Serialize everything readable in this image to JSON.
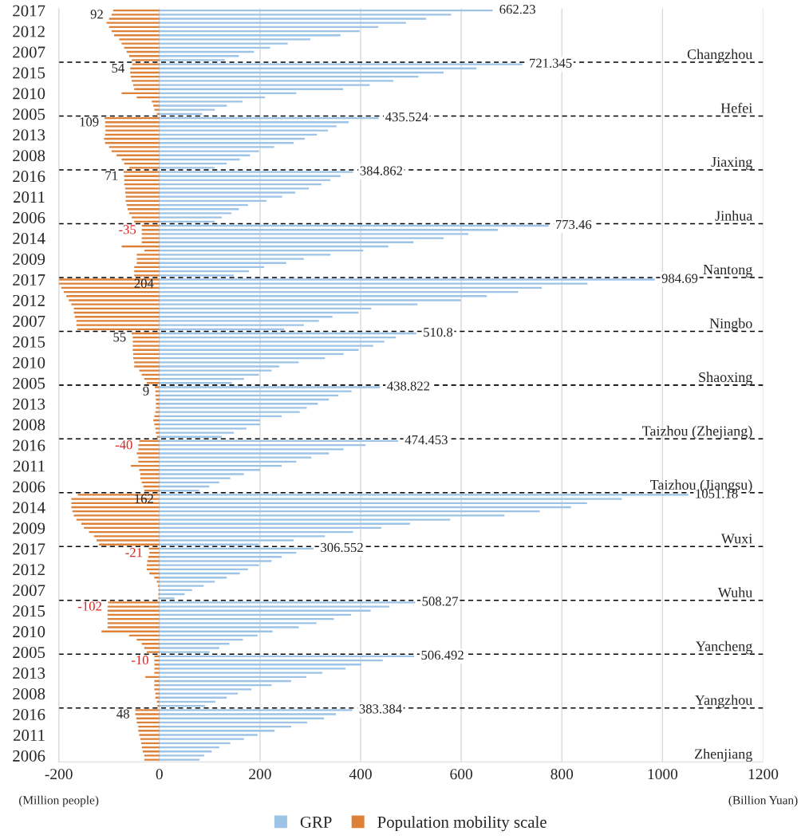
{
  "chart_data": {
    "type": "bar",
    "orientation": "horizontal",
    "categories": [
      "2017",
      null,
      null,
      null,
      null,
      "2012",
      null,
      null,
      null,
      null,
      "2007",
      null,
      null,
      null,
      null,
      "2015",
      null,
      null,
      null,
      null,
      "2010",
      null,
      null,
      null,
      null,
      "2005",
      null,
      null,
      null,
      null,
      "2013",
      null,
      null,
      null,
      null,
      "2008",
      null,
      null,
      null,
      null,
      "2016",
      null,
      null,
      null,
      null,
      "2011",
      null,
      null,
      null,
      null,
      "2006",
      null,
      null,
      null,
      null,
      "2014",
      null,
      null,
      null,
      null,
      "2009",
      null,
      null,
      null,
      null,
      "2017",
      null,
      null,
      null,
      null,
      "2012",
      null,
      null,
      null,
      null,
      "2007",
      null,
      null,
      null,
      null,
      "2015",
      null,
      null,
      null,
      null,
      "2010",
      null,
      null,
      null,
      null,
      "2005",
      null,
      null,
      null,
      null,
      "2013",
      null,
      null,
      null,
      null,
      "2008",
      null,
      null,
      null,
      null,
      "2016",
      null,
      null,
      null,
      null,
      "2011",
      null,
      null,
      null,
      null,
      "2006",
      null,
      null,
      null,
      null,
      "2014",
      null,
      null,
      null,
      null,
      "2009",
      null,
      null,
      null,
      null,
      "2017",
      null,
      null,
      null,
      null,
      "2012",
      null,
      null,
      null,
      null,
      "2007",
      null,
      null,
      null,
      null,
      "2015",
      null,
      null,
      null,
      null,
      "2010",
      null,
      null,
      null,
      null,
      "2005",
      null,
      null,
      null,
      null,
      "2013",
      null,
      null,
      null,
      null,
      "2008",
      null,
      null,
      null,
      null,
      "2016",
      null,
      null,
      null,
      null,
      "2011",
      null,
      null,
      null,
      null,
      "2006",
      null
    ],
    "series": [
      {
        "name": "GRP",
        "color": "#9dc3e6",
        "values": [
          662.23,
          580,
          530,
          490,
          435,
          398,
          360,
          300,
          255,
          220,
          188,
          158,
          130,
          721.345,
          630,
          565,
          515,
          465,
          418,
          365,
          272,
          210,
          165,
          134,
          110,
          85,
          435.524,
          376,
          352,
          335,
          313,
          289,
          267,
          228,
          198,
          180,
          160,
          134,
          110,
          384.862,
          360,
          340,
          322,
          297,
          270,
          244,
          213,
          176,
          158,
          143,
          124,
          110,
          773.46,
          673,
          614,
          565,
          505,
          455,
          405,
          340,
          287,
          252,
          208,
          178,
          148,
          984.69,
          851,
          760,
          713,
          651,
          599,
          513,
          421,
          396,
          344,
          317,
          287,
          248,
          510.8,
          470,
          447,
          425,
          396,
          366,
          329,
          277,
          238,
          223,
          198,
          168,
          144,
          438.822,
          382,
          356,
          337,
          315,
          293,
          279,
          243,
          200,
          200,
          173,
          148,
          124,
          474.453,
          410,
          366,
          337,
          302,
          272,
          243,
          200,
          168,
          141,
          119,
          99,
          79,
          1051.18,
          919,
          850,
          818,
          756,
          686,
          578,
          498,
          441,
          385,
          329,
          267,
          198,
          306.552,
          272,
          243,
          223,
          198,
          176,
          160,
          134,
          110,
          88,
          65,
          50,
          30,
          508.27,
          457,
          420,
          381,
          347,
          312,
          277,
          225,
          195,
          166,
          139,
          119,
          100,
          506.492,
          444,
          401,
          370,
          324,
          292,
          262,
          223,
          183,
          156,
          134,
          111,
          91,
          383.384,
          351,
          327,
          294,
          262,
          229,
          195,
          168,
          141,
          119,
          104,
          89,
          80
        ],
        "value_labels": [
          "662.23",
          null,
          null,
          null,
          null,
          null,
          null,
          null,
          null,
          null,
          null,
          null,
          null,
          "721.345",
          null,
          null,
          null,
          null,
          null,
          null,
          null,
          null,
          null,
          null,
          null,
          null,
          "435.524",
          null,
          null,
          null,
          null,
          null,
          null,
          null,
          null,
          null,
          null,
          null,
          null,
          "384.862",
          null,
          null,
          null,
          null,
          null,
          null,
          null,
          null,
          null,
          null,
          null,
          null,
          "773.46",
          null,
          null,
          null,
          null,
          null,
          null,
          null,
          null,
          null,
          null,
          null,
          null,
          "984.69",
          null,
          null,
          null,
          null,
          null,
          null,
          null,
          null,
          null,
          null,
          null,
          null,
          "510.8",
          null,
          null,
          null,
          null,
          null,
          null,
          null,
          null,
          null,
          null,
          null,
          null,
          "438.822",
          null,
          null,
          null,
          null,
          null,
          null,
          null,
          null,
          null,
          null,
          null,
          null,
          "474.453",
          null,
          null,
          null,
          null,
          null,
          null,
          null,
          null,
          null,
          null,
          null,
          null,
          "1051.18",
          null,
          null,
          null,
          null,
          null,
          null,
          null,
          null,
          null,
          null,
          null,
          null,
          "306.552",
          null,
          null,
          null,
          null,
          null,
          null,
          null,
          null,
          null,
          null,
          null,
          null,
          "508.27",
          null,
          null,
          null,
          null,
          null,
          null,
          null,
          null,
          null,
          null,
          null,
          null,
          "506.492",
          null,
          null,
          null,
          null,
          null,
          null,
          null,
          null,
          null,
          null,
          null,
          null,
          "383.384",
          null,
          null,
          null,
          null,
          null,
          null,
          null,
          null,
          null,
          null,
          null,
          null
        ]
      },
      {
        "name": "Population mobility scale",
        "color": "#dd8139",
        "values": [
          -92,
          -95,
          -100,
          -105,
          -100,
          -95,
          -90,
          -80,
          -75,
          -70,
          -65,
          -60,
          -55,
          -54,
          -58,
          -58,
          -57,
          -55,
          -52,
          -50,
          -75,
          -45,
          -15,
          -12,
          -10,
          -5,
          -109,
          -108,
          -108,
          -107,
          -108,
          -110,
          -108,
          -100,
          -95,
          -85,
          -75,
          -70,
          -60,
          -71,
          -70,
          -70,
          -70,
          -68,
          -68,
          -67,
          -67,
          -65,
          -63,
          -60,
          -55,
          -50,
          -35,
          -35,
          -35,
          -35,
          -35,
          -75,
          -30,
          -45,
          -45,
          -45,
          -50,
          -50,
          -50,
          -200,
          -200,
          -195,
          -190,
          -185,
          -180,
          -175,
          -170,
          -170,
          -168,
          -165,
          -165,
          -163,
          -55,
          -53,
          -53,
          -53,
          -53,
          -52,
          -52,
          -50,
          -50,
          -40,
          -35,
          -30,
          -25,
          -9,
          -8,
          -8,
          -7,
          -7,
          -7,
          -8,
          -10,
          -12,
          -10,
          -8,
          -7,
          -5,
          -40,
          -42,
          -42,
          -45,
          -42,
          -42,
          -57,
          -40,
          -38,
          -38,
          -35,
          -32,
          -30,
          -162,
          -175,
          -175,
          -175,
          -173,
          -170,
          -165,
          -155,
          -150,
          -140,
          -130,
          -125,
          -120,
          -21,
          -20,
          -22,
          -24,
          -25,
          -25,
          -20,
          -10,
          -5,
          -3,
          -2,
          -2,
          -2,
          -102,
          -103,
          -103,
          -103,
          -103,
          -103,
          -103,
          -115,
          -60,
          -45,
          -35,
          -30,
          -25,
          -10,
          -10,
          -10,
          -10,
          -10,
          -28,
          -10,
          -10,
          -10,
          -8,
          -8,
          -5,
          -4,
          -48,
          -48,
          -46,
          -45,
          -42,
          -42,
          -40,
          -38,
          -36,
          -35,
          -33,
          -30,
          -30
        ]
      }
    ],
    "xlim": [
      -200,
      1200
    ],
    "xticks": [
      -200,
      0,
      200,
      400,
      600,
      800,
      1000,
      1200
    ],
    "xlabel": "(Billion Yuan)",
    "stacked": true,
    "annotations": [
      "Changzhou",
      "Hefei",
      "Jiaxing",
      "Jinhua",
      "Nantong",
      "Ningbo",
      "Shaoxing",
      "Taizhou (Zhejiang)",
      "Taizhou (Jiangsu)",
      "Wuxi",
      "Wuhu",
      "Yancheng",
      "Yangzhou",
      "Zhenjiang",
      "92",
      "54",
      "109",
      "71",
      "-35",
      "204",
      "55",
      "9",
      "-40",
      "162",
      "-21",
      "-102",
      "-10",
      "48",
      "(Million people)"
    ],
    "grid": "x",
    "legend": "bottom"
  }
}
